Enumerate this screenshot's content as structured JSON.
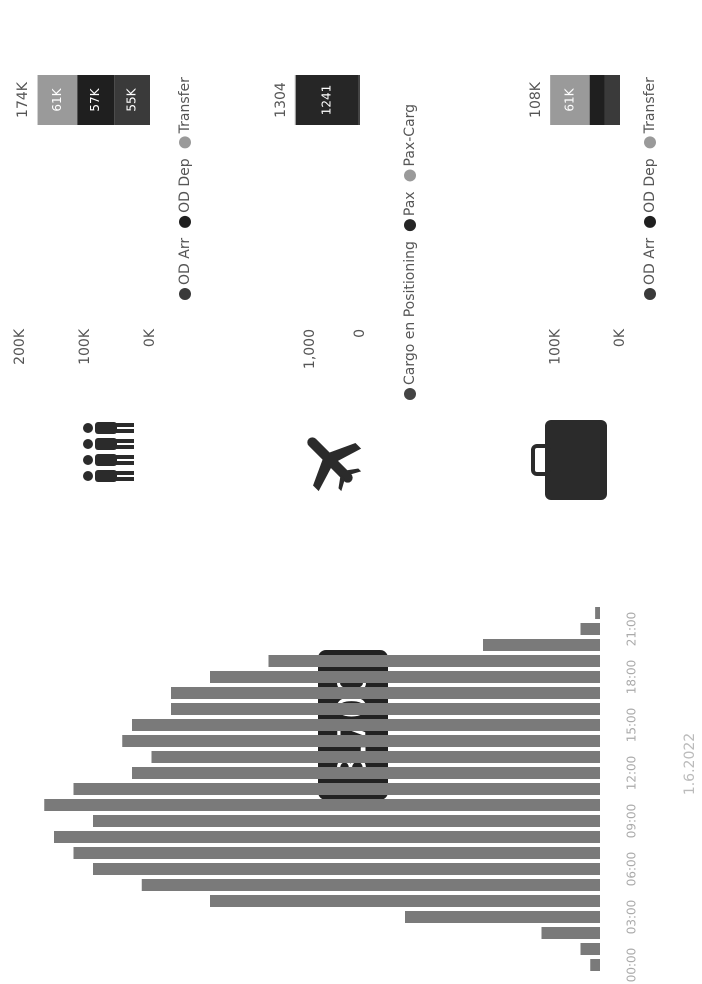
{
  "chart_data": [
    {
      "type": "bar",
      "annotation": "3.700",
      "date": "1.6.2022",
      "categories": [
        "00:00",
        null,
        null,
        "03:00",
        null,
        null,
        "06:00",
        null,
        null,
        "09:00",
        null,
        null,
        "12:00",
        null,
        null,
        "15:00",
        null,
        null,
        "18:00",
        null,
        null,
        "21:00",
        null,
        null
      ],
      "values": [
        10,
        20,
        60,
        200,
        400,
        470,
        520,
        540,
        560,
        520,
        570,
        540,
        480,
        460,
        490,
        480,
        440,
        440,
        400,
        340,
        120,
        20,
        5,
        0
      ],
      "color": "#7a7a7a",
      "ylim": [
        0,
        600
      ]
    },
    {
      "type": "stacked_bar",
      "total": 174000,
      "total_label": "174K",
      "ylim": [
        0,
        200000
      ],
      "yticks": [
        {
          "value": 0,
          "label": "0K"
        },
        {
          "value": 100000,
          "label": "100K"
        },
        {
          "value": 200000,
          "label": "200K"
        }
      ],
      "series": [
        {
          "name": "OD Arr",
          "color": "#3a3a3a",
          "values": [
            55000
          ],
          "value_labels": [
            "55K"
          ]
        },
        {
          "name": "OD Dep",
          "color": "#1f1f1f",
          "values": [
            57000
          ],
          "value_labels": [
            "57K"
          ]
        },
        {
          "name": "Transfer",
          "color": "#9a9a9a",
          "values": [
            61000
          ],
          "value_labels": [
            "61K"
          ]
        }
      ]
    },
    {
      "type": "stacked_bar",
      "total": 1304,
      "ylim": [
        0,
        1400
      ],
      "yticks": [
        0,
        {
          "value": 1000,
          "label": "1,000"
        }
      ],
      "series": [
        {
          "name": "Cargo en Positioning",
          "color": "#444444",
          "values": [
            40
          ],
          "value_labels": [
            null
          ]
        },
        {
          "name": "Pax",
          "color": "#262626",
          "values": [
            1241
          ],
          "value_labels": [
            "1241"
          ]
        },
        {
          "name": "Pax-Carg",
          "color": "#9a9a9a",
          "values": [
            23
          ],
          "value_labels": [
            null
          ]
        }
      ]
    },
    {
      "type": "stacked_bar",
      "total": 108000,
      "total_label": "108K",
      "ylim": [
        0,
        150000
      ],
      "yticks": [
        {
          "value": 0,
          "label": "0K"
        },
        {
          "value": 100000,
          "label": "100K"
        }
      ],
      "series": [
        {
          "name": "OD Arr",
          "color": "#3a3a3a",
          "values": [
            24000
          ],
          "value_labels": [
            null
          ]
        },
        {
          "name": "OD Dep",
          "color": "#1f1f1f",
          "values": [
            23000
          ],
          "value_labels": [
            null
          ]
        },
        {
          "name": "Transfer",
          "color": "#9a9a9a",
          "values": [
            61000
          ],
          "value_labels": [
            "61K"
          ]
        }
      ]
    }
  ]
}
